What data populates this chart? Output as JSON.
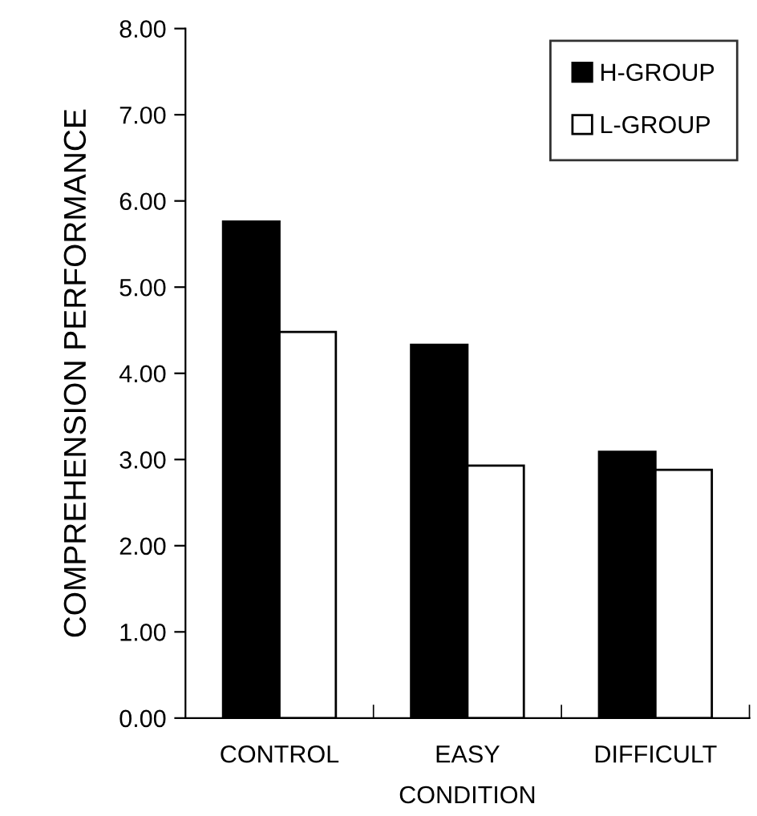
{
  "chart_data": {
    "type": "bar",
    "xlabel": "CONDITION",
    "ylabel": "COMPREHENSION PERFORMANCE",
    "categories": [
      "CONTROL",
      "EASY",
      "DIFFICULT"
    ],
    "series": [
      {
        "name": "H-GROUP",
        "color": "#000000",
        "values": [
          5.76,
          4.33,
          3.09
        ]
      },
      {
        "name": "L-GROUP",
        "color": "#ffffff",
        "values": [
          4.48,
          2.93,
          2.88
        ]
      }
    ],
    "ylim": [
      0,
      8
    ],
    "yticks": [
      {
        "value": 0,
        "label": "0.00"
      },
      {
        "value": 1,
        "label": "1.00"
      },
      {
        "value": 2,
        "label": "2.00"
      },
      {
        "value": 3,
        "label": "3.00"
      },
      {
        "value": 4,
        "label": "4.00"
      },
      {
        "value": 5,
        "label": "5.00"
      },
      {
        "value": 6,
        "label": "6.00"
      },
      {
        "value": 7,
        "label": "7.00"
      },
      {
        "value": 8,
        "label": "8.00"
      }
    ],
    "grid": false,
    "legend": "top right"
  }
}
